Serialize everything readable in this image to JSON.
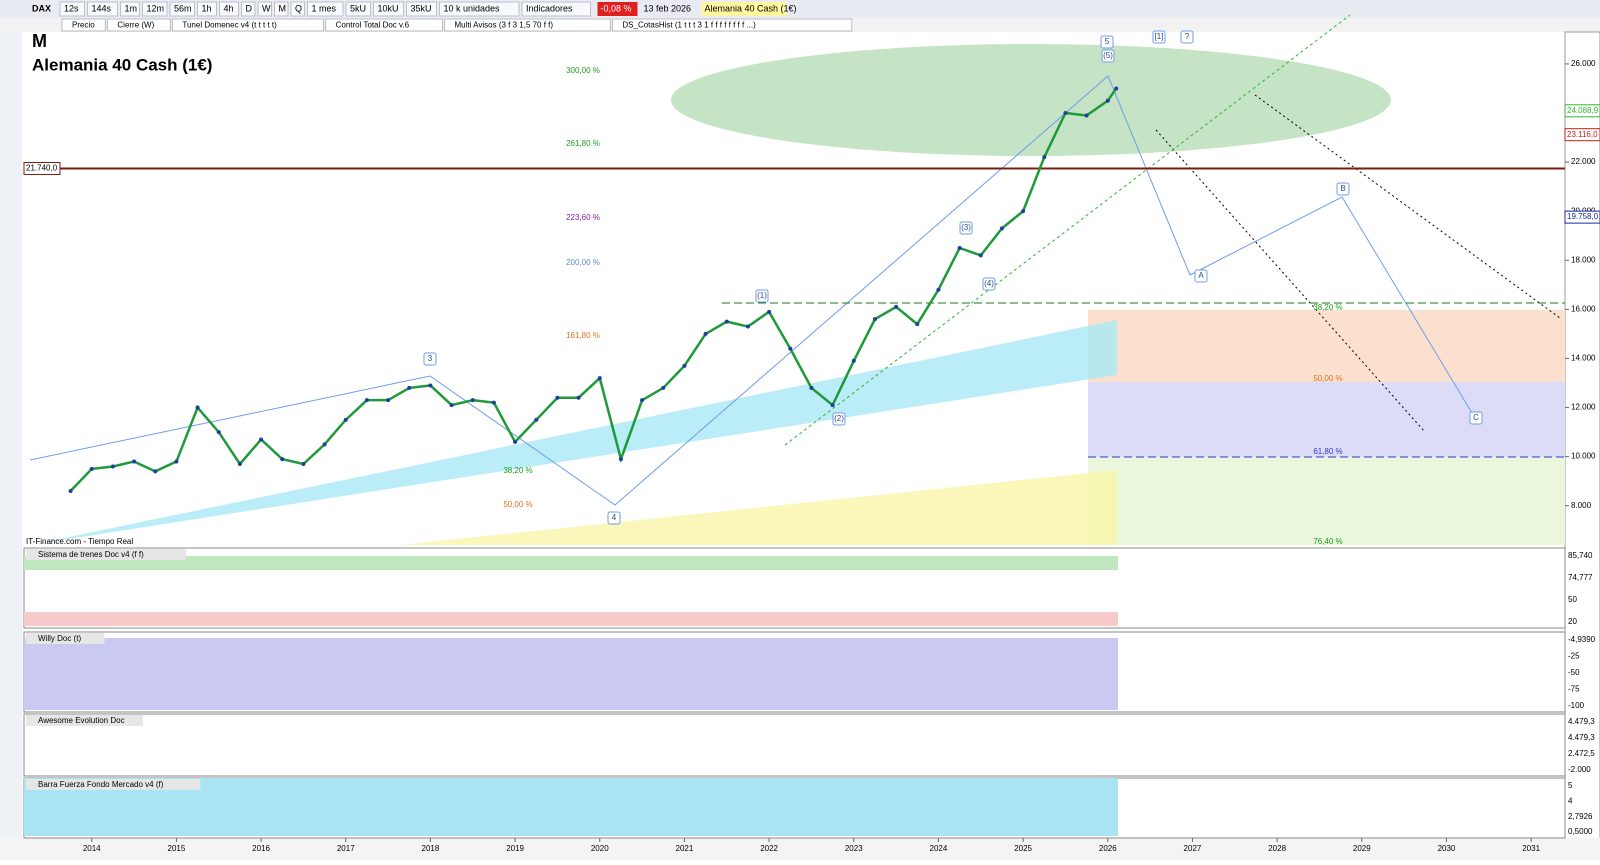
{
  "toolbar": {
    "symbol": "DAX",
    "items": [
      "12s",
      "144s",
      "1m",
      "12m",
      "56m",
      "1h",
      "4h",
      "D",
      "W",
      "M",
      "Q",
      "1 mes",
      "5kU",
      "10kU",
      "35kU",
      "10 k unidades",
      "Indicadores"
    ],
    "change": "-0,08 %",
    "date": "13 feb 2026",
    "instrument": "Alemania 40 Cash (1€)"
  },
  "tabs": [
    "Precio",
    "Cierre (W)",
    "Tunel Domenec v4 (t t t t t)",
    "Control Total Doc v.6",
    "Multi Avisos (3 f 3 1,5 70 f f)",
    "DS_CotasHist (1 t t t 3 1 f f f f f f f f ...)"
  ],
  "chart_data": {
    "type": "line",
    "title": "M",
    "subtitle": "Alemania 40 Cash (1€)",
    "source": "IT-Finance.com - Tiempo Real",
    "color": "#1f9a3a",
    "x": [
      2013.75,
      2014.0,
      2014.25,
      2014.5,
      2014.75,
      2015.0,
      2015.25,
      2015.5,
      2015.75,
      2016.0,
      2016.25,
      2016.5,
      2016.75,
      2017.0,
      2017.25,
      2017.5,
      2017.75,
      2018.0,
      2018.25,
      2018.5,
      2018.75,
      2019.0,
      2019.25,
      2019.5,
      2019.75,
      2020.0,
      2020.25,
      2020.5,
      2020.75,
      2021.0,
      2021.25,
      2021.5,
      2021.75,
      2022.0,
      2022.25,
      2022.5,
      2022.75,
      2023.0,
      2023.25,
      2023.5,
      2023.75,
      2024.0,
      2024.25,
      2024.5,
      2024.75,
      2025.0,
      2025.25,
      2025.5,
      2025.75,
      2026.0,
      2026.1
    ],
    "values": [
      8600,
      9500,
      9600,
      9800,
      9400,
      9800,
      12000,
      11000,
      9700,
      10700,
      9900,
      9700,
      10500,
      11500,
      12300,
      12300,
      12800,
      12900,
      12100,
      12300,
      12200,
      10600,
      11500,
      12400,
      12400,
      13200,
      9900,
      12300,
      12800,
      13700,
      15000,
      15500,
      15300,
      15900,
      14400,
      12800,
      12100,
      13900,
      15600,
      16100,
      15400,
      16800,
      18500,
      18200,
      19300,
      20000,
      22200,
      24000,
      23900,
      24500,
      25000
    ],
    "xlim": [
      2013.2,
      2031.4
    ],
    "xticks": [
      2014,
      2015,
      2016,
      2017,
      2018,
      2019,
      2020,
      2021,
      2022,
      2023,
      2024,
      2025,
      2026,
      2027,
      2028,
      2029,
      2030,
      2031
    ],
    "ylim": [
      6400,
      27300
    ],
    "yticks": [
      {
        "value": 8000,
        "label": "8.000"
      },
      {
        "value": 10000,
        "label": "10.000"
      },
      {
        "value": 12000,
        "label": "12.000"
      },
      {
        "value": 14000,
        "label": "14.000"
      },
      {
        "value": 16000,
        "label": "16.000"
      },
      {
        "value": 18000,
        "label": "18.000"
      },
      {
        "value": 20000,
        "label": "20.000"
      },
      {
        "value": 22000,
        "label": "22.000"
      },
      {
        "value": 24000,
        "label": "24.000"
      },
      {
        "value": 26000,
        "label": "26.000"
      }
    ],
    "level": {
      "value": 21740,
      "label": "21.740,0"
    },
    "price_labels": [
      {
        "value": 24088.9,
        "label": "24.088,9"
      },
      {
        "value": 23116,
        "label": "23.116,0"
      },
      {
        "value": 19758,
        "label": "19.758,0"
      }
    ],
    "fib_labels": [
      "300,00 %",
      "261,80 %",
      "223,60 %",
      "200,00 %",
      "161,80 %",
      "38,20 %",
      "50,00 %",
      "38,20 %",
      "50,00 %",
      "61,80 %",
      "76,40 %"
    ],
    "wave_labels": [
      "5",
      "(5)",
      "[1]",
      "?",
      "3",
      "(3)",
      "(4)",
      "(1)",
      "(2)",
      "4",
      "A",
      "B",
      "C"
    ]
  },
  "panels": [
    {
      "title": "Sistema de trenes Doc v4 (f f)",
      "labels": [
        "85,740",
        "74,777",
        "50",
        "20"
      ]
    },
    {
      "title": "Willy Doc (t)",
      "labels": [
        "-4,9390",
        "-25",
        "-50",
        "-75",
        "-100"
      ]
    },
    {
      "title": "Awesome Evolution Doc",
      "labels": [
        "4.479,3",
        "4.479,3",
        "2.472,5",
        "-2.000"
      ]
    },
    {
      "title": "Barra Fuerza Fondo Mercado v4 (f)",
      "labels": [
        "5",
        "4",
        "2,7926",
        "0,5000"
      ]
    }
  ]
}
